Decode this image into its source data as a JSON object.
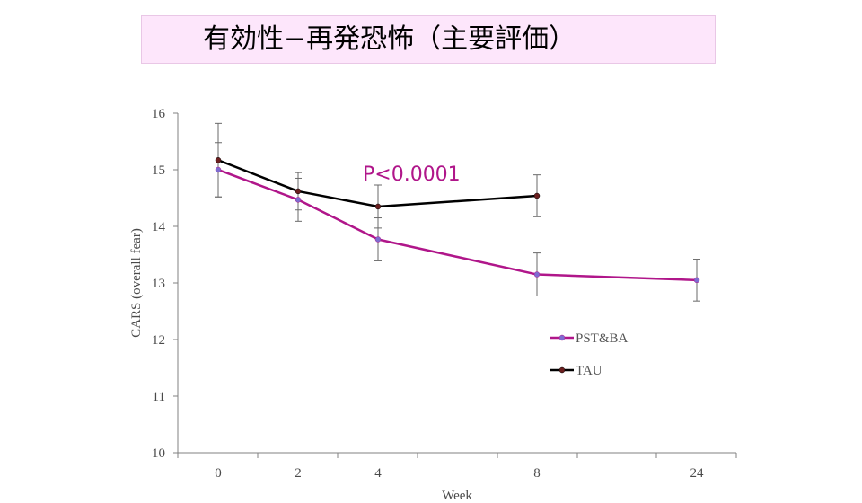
{
  "header": {
    "title": "有効性−再発恐怖（主要評価）"
  },
  "chart_data": {
    "type": "line",
    "xlabel": "Week",
    "ylabel": "CARS (overall fear)",
    "categories": [
      "0",
      "2",
      "4",
      "8",
      "24"
    ],
    "ylim": [
      10,
      16
    ],
    "yticks": [
      10,
      11,
      12,
      13,
      14,
      15,
      16
    ],
    "grid": false,
    "legend_position": "right",
    "annotation": "P<0.0001",
    "series": [
      {
        "name": "PST&BA",
        "color": "#b0168a",
        "marker_color": "#7f6bd0",
        "values": [
          15.0,
          14.47,
          13.77,
          13.15,
          13.05
        ],
        "error": [
          0.48,
          0.38,
          0.38,
          0.38,
          0.37
        ]
      },
      {
        "name": "TAU",
        "color": "#000000",
        "marker_color": "#6b1f1f",
        "values": [
          15.17,
          14.62,
          14.35,
          14.54,
          null
        ],
        "error": [
          0.65,
          0.33,
          0.38,
          0.37,
          null
        ]
      }
    ]
  }
}
